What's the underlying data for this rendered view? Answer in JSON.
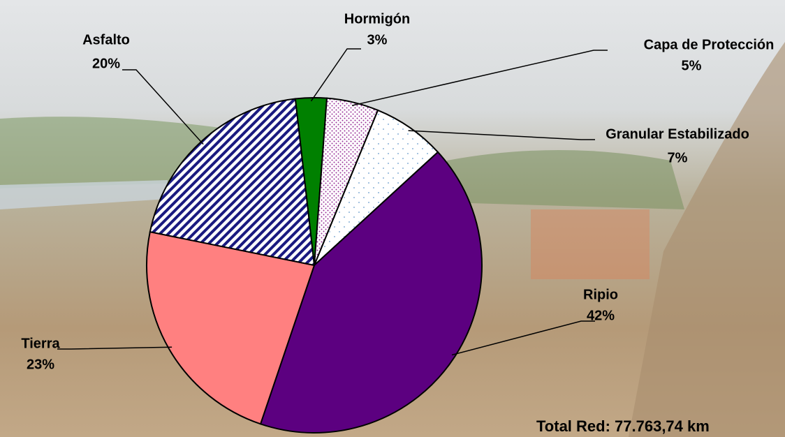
{
  "chart_data": {
    "type": "pie",
    "categories": [
      "Hormigón",
      "Capa de Protección",
      "Granular Estabilizado",
      "Ripio",
      "Tierra",
      "Asfalto"
    ],
    "values": [
      3,
      5,
      7,
      42,
      23,
      20
    ],
    "value_labels": [
      "3%",
      "5%",
      "7%",
      "42%",
      "23%",
      "20%"
    ],
    "colors": [
      "#008000",
      "#993399",
      "#6699cc",
      "#5c0080",
      "#ff8080",
      "#1a1a80"
    ],
    "annotation": "Total Red: 77.763,74 km"
  }
}
